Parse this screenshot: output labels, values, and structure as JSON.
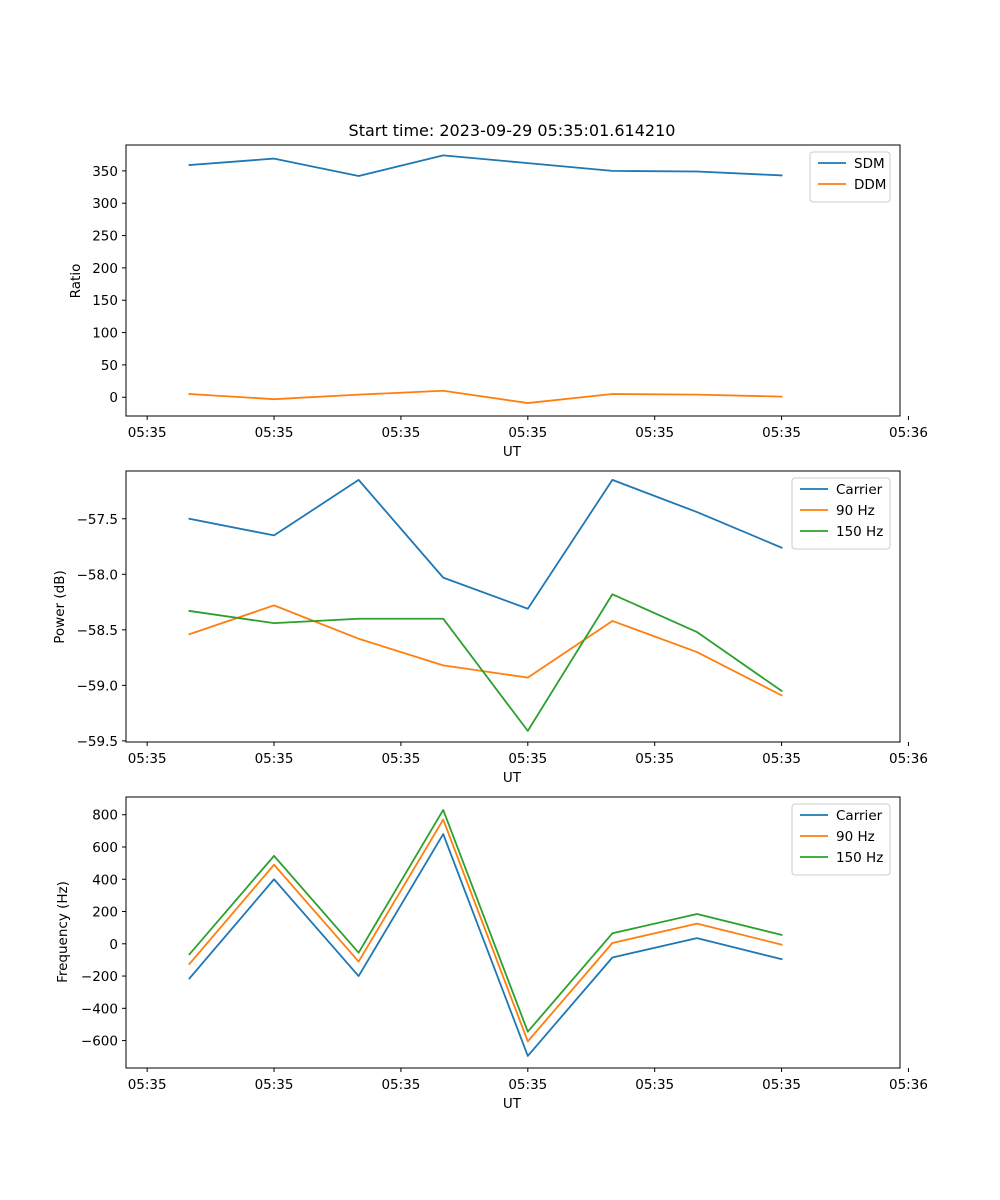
{
  "figure": {
    "title": "Start time: 2023-09-29 05:35:01.614210"
  },
  "colors": {
    "blue": "#1f77b4",
    "orange": "#ff7f0e",
    "green": "#2ca02c"
  },
  "chart_data": [
    {
      "type": "line",
      "title": "Start time: 2023-09-29 05:35:01.614210",
      "xlabel": "UT",
      "ylabel": "Ratio",
      "x": [
        1,
        2,
        3,
        4,
        5,
        6,
        7,
        8
      ],
      "xlim": [
        0.25,
        9.4
      ],
      "ylim": [
        -29,
        390
      ],
      "xticks": [
        0.5,
        2,
        3.5,
        5,
        6.5,
        8,
        9.5
      ],
      "xtick_labels": [
        "05:35",
        "05:35",
        "05:35",
        "05:35",
        "05:35",
        "05:35",
        "05:35"
      ],
      "xtick_last_label": "05:36",
      "yticks": [
        0,
        50,
        100,
        150,
        200,
        250,
        300,
        350
      ],
      "ytick_labels": [
        "0",
        "50",
        "100",
        "150",
        "200",
        "250",
        "300",
        "350"
      ],
      "legend_position": "top-right",
      "series": [
        {
          "name": "SDM",
          "color": "#1f77b4",
          "values": [
            359,
            369,
            342,
            374,
            362,
            350,
            349,
            343
          ]
        },
        {
          "name": "DDM",
          "color": "#ff7f0e",
          "values": [
            5,
            -3,
            4,
            10,
            -9,
            5,
            4,
            1
          ]
        }
      ]
    },
    {
      "type": "line",
      "title": "",
      "xlabel": "UT",
      "ylabel": "Power (dB)",
      "x": [
        1,
        2,
        3,
        4,
        5,
        6,
        7,
        8
      ],
      "xlim": [
        0.25,
        9.4
      ],
      "ylim": [
        -59.51,
        -57.07
      ],
      "xticks": [
        0.5,
        2,
        3.5,
        5,
        6.5,
        8,
        9.5
      ],
      "xtick_labels": [
        "05:35",
        "05:35",
        "05:35",
        "05:35",
        "05:35",
        "05:35",
        "05:35"
      ],
      "xtick_last_label": "05:36",
      "yticks": [
        -59.5,
        -59.0,
        -58.5,
        -58.0,
        -57.5
      ],
      "ytick_labels": [
        "−59.5",
        "−59.0",
        "−58.5",
        "−58.0",
        "−57.5"
      ],
      "legend_position": "top-right",
      "series": [
        {
          "name": "Carrier",
          "color": "#1f77b4",
          "values": [
            -57.5,
            -57.65,
            -57.15,
            -58.03,
            -58.31,
            -57.15,
            -57.44,
            -57.76
          ]
        },
        {
          "name": "90 Hz",
          "color": "#ff7f0e",
          "values": [
            -58.54,
            -58.28,
            -58.58,
            -58.82,
            -58.93,
            -58.42,
            -58.7,
            -59.09
          ]
        },
        {
          "name": "150 Hz",
          "color": "#2ca02c",
          "values": [
            -58.33,
            -58.44,
            -58.4,
            -58.4,
            -59.41,
            -58.18,
            -58.52,
            -59.05
          ]
        }
      ]
    },
    {
      "type": "line",
      "title": "",
      "xlabel": "UT",
      "ylabel": "Frequency (Hz)",
      "x": [
        1,
        2,
        3,
        4,
        5,
        6,
        7,
        8
      ],
      "xlim": [
        0.25,
        9.4
      ],
      "ylim": [
        -770,
        910
      ],
      "xticks": [
        0.5,
        2,
        3.5,
        5,
        6.5,
        8,
        9.5
      ],
      "xtick_labels": [
        "05:35",
        "05:35",
        "05:35",
        "05:35",
        "05:35",
        "05:35",
        "05:35"
      ],
      "xtick_last_label": "05:36",
      "yticks": [
        -600,
        -400,
        -200,
        0,
        200,
        400,
        600,
        800
      ],
      "ytick_labels": [
        "−600",
        "−400",
        "−200",
        "0",
        "200",
        "400",
        "600",
        "800"
      ],
      "legend_position": "top-right",
      "series": [
        {
          "name": "Carrier",
          "color": "#1f77b4",
          "values": [
            -215,
            400,
            -200,
            680,
            -695,
            -85,
            35,
            -95
          ]
        },
        {
          "name": "90 Hz",
          "color": "#ff7f0e",
          "values": [
            -125,
            490,
            -110,
            770,
            -605,
            5,
            125,
            -5
          ]
        },
        {
          "name": "150 Hz",
          "color": "#2ca02c",
          "values": [
            -65,
            545,
            -55,
            830,
            -545,
            65,
            185,
            55
          ]
        }
      ]
    }
  ]
}
